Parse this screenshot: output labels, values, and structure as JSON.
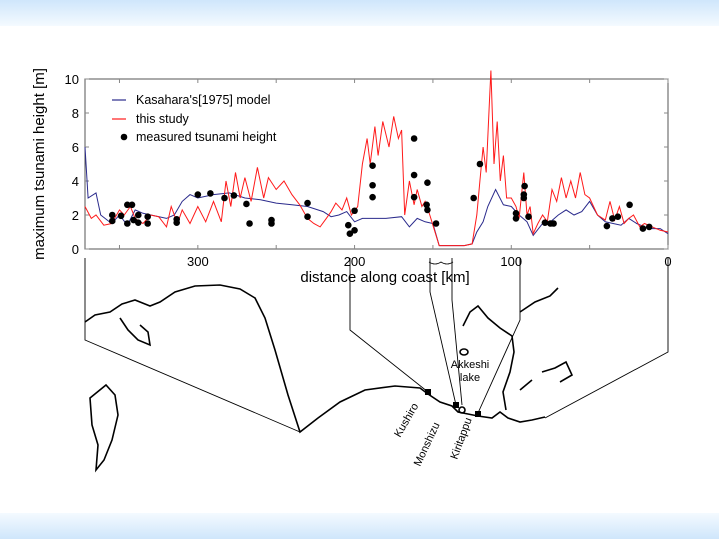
{
  "chart_data": {
    "type": "line",
    "xlabel": "distance along coast [km]",
    "ylabel": "maximum tsunami height [m]",
    "xlim": [
      372,
      0
    ],
    "ylim": [
      0,
      10
    ],
    "x_reversed": true,
    "xticks": [
      300,
      200,
      100,
      0
    ],
    "yticks": [
      0,
      2,
      4,
      6,
      8,
      10
    ],
    "legend_position": "top-left",
    "series": [
      {
        "name": "Kasahara's[1975] model",
        "color": "#2a2a8c",
        "type": "line",
        "x": [
          372,
          370,
          365,
          362,
          355,
          350,
          345,
          340,
          335,
          330,
          320,
          315,
          310,
          305,
          300,
          290,
          280,
          270,
          260,
          250,
          240,
          230,
          220,
          215,
          210,
          205,
          200,
          195,
          190,
          180,
          170,
          165,
          160,
          155,
          150,
          146,
          130,
          125,
          122,
          118,
          115,
          110,
          105,
          100,
          95,
          90,
          86,
          80,
          75,
          70,
          65,
          60,
          55,
          50,
          45,
          40,
          35,
          30,
          25,
          20,
          15,
          10,
          5,
          0
        ],
        "y": [
          6,
          3,
          3.3,
          2,
          1.5,
          2.0,
          1.4,
          2.3,
          2.1,
          2.0,
          1.8,
          2.0,
          2.8,
          3.2,
          3.0,
          3.2,
          3.3,
          3.0,
          2.9,
          2.7,
          2.6,
          2.5,
          2.2,
          1.9,
          2.0,
          2.2,
          1.6,
          1.8,
          1.8,
          1.8,
          1.9,
          1.3,
          1.8,
          1.6,
          1.5,
          0.2,
          0.2,
          0.3,
          1.0,
          1.6,
          2.5,
          3.5,
          2.6,
          2.5,
          2.0,
          1.6,
          0.8,
          1.5,
          1.6,
          2.0,
          2.3,
          2.0,
          2.2,
          2.8,
          2.0,
          1.6,
          1.5,
          1.4,
          1.8,
          1.5,
          1.3,
          1.2,
          1.2,
          0.9
        ]
      },
      {
        "name": "this study",
        "color": "#ff1a1a",
        "type": "line",
        "x": [
          372,
          368,
          365,
          360,
          355,
          350,
          347,
          343,
          340,
          335,
          330,
          325,
          320,
          317,
          313,
          310,
          305,
          300,
          295,
          290,
          285,
          282,
          279,
          276,
          273,
          270,
          266,
          262,
          258,
          255,
          250,
          245,
          240,
          235,
          230,
          226,
          222,
          218,
          215,
          212,
          208,
          205,
          202,
          198,
          195,
          192,
          190,
          187,
          185,
          182,
          178,
          175,
          172,
          170,
          168,
          165,
          162,
          160,
          157,
          155,
          152,
          150,
          146,
          130,
          125,
          122,
          120,
          118,
          116,
          114,
          113,
          111,
          109,
          107,
          105,
          103,
          100,
          97,
          95,
          92,
          90,
          88,
          86,
          83,
          80,
          77,
          74,
          71,
          68,
          65,
          62,
          59,
          56,
          53,
          50,
          45,
          40,
          37,
          34,
          31,
          28,
          25,
          22,
          18,
          15,
          10,
          5,
          0
        ],
        "y": [
          2.5,
          1.8,
          2.0,
          1.4,
          1.5,
          2.3,
          2.0,
          2.5,
          1.8,
          1.5,
          2.0,
          1.9,
          1.3,
          2.5,
          1.5,
          2.3,
          1.5,
          2.5,
          1.6,
          2.8,
          1.6,
          4.0,
          2.5,
          4.5,
          3.0,
          4.2,
          2.8,
          4.8,
          3.0,
          4.2,
          3.5,
          4.0,
          3.2,
          2.6,
          1.8,
          1.5,
          1.3,
          1.8,
          2.2,
          2.7,
          2.3,
          3.0,
          2.0,
          2.5,
          5.0,
          6.5,
          5.0,
          7.2,
          5.5,
          7.5,
          6.0,
          7.8,
          6.5,
          7.0,
          2.0,
          4.0,
          2.6,
          3.5,
          2.5,
          2.8,
          2.0,
          1.4,
          0.2,
          0.2,
          0.3,
          2.0,
          4.0,
          6.0,
          4.5,
          8.5,
          10.5,
          5.0,
          7.5,
          4.0,
          5.5,
          3.0,
          3.0,
          2.5,
          1.8,
          4.5,
          2.0,
          2.5,
          0.9,
          1.5,
          2.0,
          1.6,
          3.5,
          2.8,
          4.2,
          3.0,
          4.0,
          3.0,
          4.5,
          3.2,
          3.0,
          2.0,
          1.7,
          2.8,
          1.7,
          2.5,
          1.5,
          1.8,
          2.0,
          1.3,
          1.5,
          1.3,
          1.1,
          1.0
        ]
      },
      {
        "name": "measured tsunami height",
        "color": "#000000",
        "type": "scatter",
        "x": [
          354.6,
          354.6,
          349,
          345,
          342,
          345,
          341,
          338,
          338,
          332,
          332,
          313.5,
          313.5,
          300,
          292,
          283,
          277,
          269,
          267,
          253,
          253,
          230,
          230,
          204,
          203,
          200,
          200,
          188.5,
          188.5,
          188.5,
          162,
          162,
          162,
          153.5,
          154,
          153.5,
          148,
          124,
          120,
          97,
          97,
          91.5,
          92,
          92,
          89,
          78.5,
          75,
          73,
          39,
          35.5,
          32,
          24.5,
          16,
          12
        ],
        "y": [
          2.0,
          1.65,
          1.95,
          2.6,
          2.6,
          1.5,
          1.7,
          2.0,
          1.55,
          1.9,
          1.5,
          1.75,
          1.55,
          3.2,
          3.27,
          3.0,
          3.15,
          2.65,
          1.5,
          1.7,
          1.5,
          2.7,
          1.9,
          1.4,
          0.9,
          1.1,
          2.25,
          4.9,
          3.75,
          3.05,
          6.5,
          4.35,
          3.05,
          3.9,
          2.6,
          2.3,
          1.5,
          3.0,
          5.0,
          2.1,
          1.8,
          3.7,
          3.2,
          3.0,
          1.9,
          1.55,
          1.5,
          1.5,
          1.35,
          1.8,
          1.9,
          2.6,
          1.2,
          1.3
        ]
      }
    ]
  },
  "map": {
    "places": [
      "Kushiro",
      "Monshizu",
      "Kiritappu"
    ],
    "lake_label": [
      "Akkeshi",
      "lake"
    ]
  },
  "colors": {
    "band": "#cfe6fb"
  }
}
